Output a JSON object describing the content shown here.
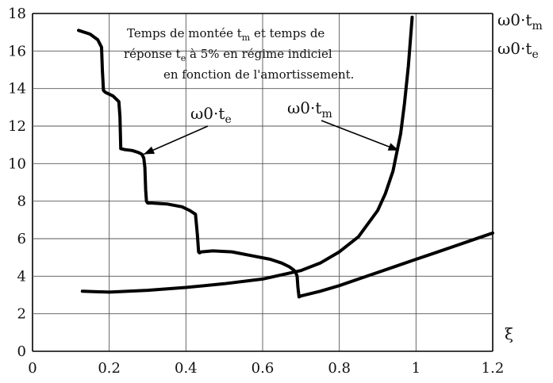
{
  "chart_data": {
    "type": "line",
    "title_lines": [
      {
        "a": "Temps de montée t",
        "s": "m",
        "b": " et temps de"
      },
      {
        "a": "réponse t",
        "s": "e",
        "b": " à 5% en régime indiciel"
      },
      {
        "a": "en fonction de l'amortissement.",
        "s": "",
        "b": ""
      }
    ],
    "xlabel": "ξ",
    "ylabel_lines": [
      {
        "main": "ω0·t",
        "sub": "m"
      },
      {
        "main": "ω0·t",
        "sub": "e"
      }
    ],
    "xlim": [
      0,
      1.2
    ],
    "ylim": [
      0,
      18
    ],
    "xticks": [
      0,
      0.2,
      0.4,
      0.6,
      0.8,
      1,
      1.2
    ],
    "yticks": [
      0,
      2,
      4,
      6,
      8,
      10,
      12,
      14,
      16,
      18
    ],
    "xtick_labels": [
      "0",
      "0.2",
      "0.4",
      "0.6",
      "0.8",
      "1",
      "1.2"
    ],
    "ytick_labels": [
      "0",
      "2",
      "4",
      "6",
      "8",
      "10",
      "12",
      "14",
      "16",
      "18"
    ],
    "grid": true,
    "annotations": [
      {
        "main": "ω0·t",
        "sub": "e",
        "target": [
          0.29,
          10.5
        ]
      },
      {
        "main": "ω0·t",
        "sub": "m",
        "target": [
          0.955,
          10.7
        ]
      }
    ],
    "series": [
      {
        "name": "ω0·tm",
        "x": [
          0.13,
          0.2,
          0.3,
          0.4,
          0.5,
          0.6,
          0.7,
          0.75,
          0.8,
          0.85,
          0.9,
          0.92,
          0.94,
          0.96,
          0.97,
          0.98,
          0.99
        ],
        "y": [
          3.2,
          3.15,
          3.25,
          3.4,
          3.6,
          3.85,
          4.3,
          4.7,
          5.3,
          6.1,
          7.5,
          8.4,
          9.6,
          11.6,
          13.2,
          15.2,
          17.8
        ]
      },
      {
        "name": "ω0·te",
        "x": [
          0.12,
          0.15,
          0.17,
          0.18,
          0.182,
          0.185,
          0.19,
          0.21,
          0.225,
          0.228,
          0.23,
          0.24,
          0.26,
          0.275,
          0.285,
          0.29,
          0.293,
          0.295,
          0.297,
          0.3,
          0.31,
          0.35,
          0.39,
          0.41,
          0.425,
          0.43,
          0.433,
          0.435,
          0.436,
          0.44,
          0.47,
          0.52,
          0.57,
          0.62,
          0.65,
          0.67,
          0.68,
          0.685,
          0.69,
          0.692,
          0.695,
          0.7,
          0.75,
          0.8,
          0.85,
          0.9,
          0.95,
          1.0,
          1.05,
          1.1,
          1.15,
          1.2
        ],
        "y": [
          17.1,
          16.9,
          16.6,
          16.2,
          15.0,
          13.9,
          13.8,
          13.6,
          13.3,
          12.5,
          10.8,
          10.75,
          10.7,
          10.6,
          10.5,
          10.3,
          9.8,
          8.6,
          8.0,
          7.9,
          7.9,
          7.85,
          7.7,
          7.5,
          7.3,
          6.2,
          5.3,
          5.25,
          5.25,
          5.3,
          5.35,
          5.3,
          5.1,
          4.9,
          4.7,
          4.5,
          4.35,
          4.25,
          4.0,
          3.4,
          2.9,
          2.95,
          3.2,
          3.5,
          3.85,
          4.2,
          4.55,
          4.9,
          5.25,
          5.6,
          5.95,
          6.3
        ]
      }
    ]
  }
}
